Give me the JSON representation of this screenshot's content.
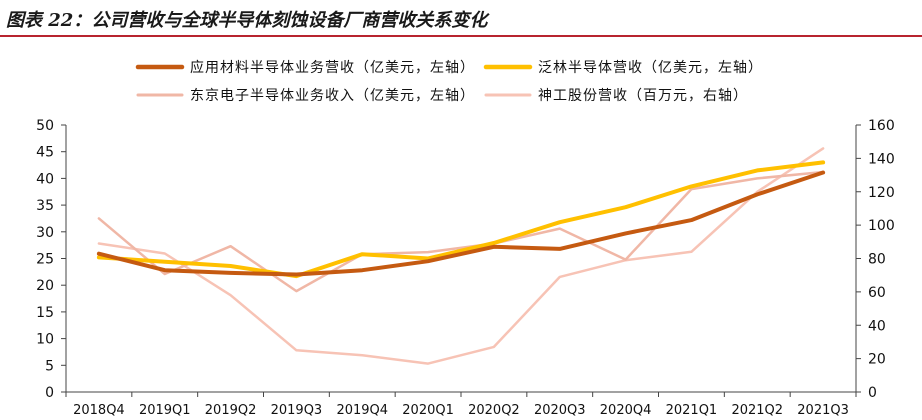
{
  "header": {
    "title": "图表 22：公司营收与全球半导体刻蚀设备厂商营收关系变化"
  },
  "chart_data": {
    "type": "line",
    "categories": [
      "2018Q4",
      "2019Q1",
      "2019Q2",
      "2019Q3",
      "2019Q4",
      "2020Q1",
      "2020Q2",
      "2020Q3",
      "2020Q4",
      "2021Q1",
      "2021Q2",
      "2021Q3"
    ],
    "left_axis": {
      "ylim": [
        0,
        50
      ],
      "ticks": [
        0,
        5,
        10,
        15,
        20,
        25,
        30,
        35,
        40,
        45,
        50
      ]
    },
    "right_axis": {
      "ylim": [
        0,
        160
      ],
      "ticks": [
        0,
        20,
        40,
        60,
        80,
        100,
        120,
        140,
        160
      ]
    },
    "grid": false,
    "legend_position": "top",
    "series": [
      {
        "name": "应用材料半导体业务营收（亿美元，左轴）",
        "axis": "left",
        "color": "#c55a11",
        "width": 4,
        "values": [
          25.9,
          22.8,
          22.3,
          22.0,
          22.8,
          24.5,
          27.2,
          26.8,
          29.7,
          32.2,
          37.0,
          41.1
        ]
      },
      {
        "name": "泛林半导体营收（亿美元，左轴）",
        "axis": "left",
        "color": "#ffc000",
        "width": 4,
        "values": [
          25.2,
          24.4,
          23.6,
          21.7,
          25.8,
          25.0,
          27.9,
          31.8,
          34.6,
          38.5,
          41.5,
          43.0
        ]
      },
      {
        "name": "东京电子半导体业务收入（亿美元，左轴）",
        "axis": "left",
        "color": "#f0b7a6",
        "width": 2.5,
        "values": [
          32.5,
          22.1,
          27.3,
          18.9,
          25.8,
          26.2,
          27.8,
          30.6,
          24.8,
          38.0,
          40.0,
          41.2
        ]
      },
      {
        "name": "神工股份营收（百万元，右轴）",
        "axis": "right",
        "color": "#f7c3b5",
        "width": 2.5,
        "values": [
          89,
          83,
          58,
          25,
          22,
          17,
          27,
          69,
          79,
          84,
          120,
          146
        ]
      }
    ]
  }
}
